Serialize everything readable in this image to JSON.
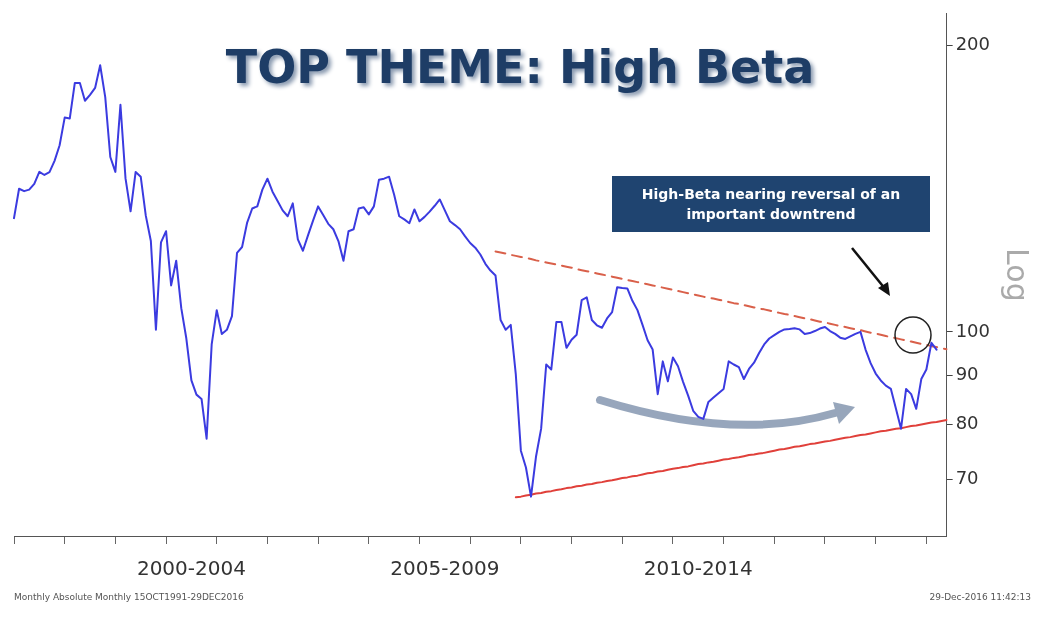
{
  "chart_data": {
    "type": "line",
    "title": "TOP THEME: High Beta",
    "ylabel": "Log",
    "annotations": [
      "High-Beta nearing reversal of an important downtrend",
      "Monthly Absolute  Monthly 15OCT1991-29DEC2016",
      "29-Dec-2016 11:42:13"
    ],
    "log": "y",
    "grid": false,
    "legend": false,
    "marker": "none",
    "categories": [
      null,
      null,
      null,
      null,
      null,
      null,
      null,
      null,
      null,
      null,
      null,
      null,
      null,
      null,
      null,
      null,
      null,
      null,
      null,
      null,
      null,
      null,
      null,
      null,
      null,
      null,
      null,
      null,
      null,
      null,
      null,
      null,
      null,
      null,
      null,
      "2000-2004",
      null,
      null,
      null,
      null,
      null,
      null,
      null,
      null,
      null,
      null,
      null,
      null,
      null,
      null,
      null,
      null,
      null,
      null,
      null,
      null,
      null,
      null,
      null,
      null,
      null,
      null,
      null,
      null,
      null,
      null,
      null,
      null,
      null,
      null,
      null,
      null,
      null,
      null,
      null,
      null,
      null,
      null,
      null,
      null,
      null,
      null,
      null,
      null,
      null,
      "2005-2009",
      null,
      null,
      null,
      null,
      null,
      null,
      null,
      null,
      null,
      null,
      null,
      null,
      null,
      null,
      null,
      null,
      null,
      null,
      null,
      null,
      null,
      null,
      null,
      null,
      null,
      null,
      null,
      null,
      null,
      null,
      null,
      null,
      null,
      null,
      null,
      null,
      null,
      null,
      null,
      null,
      null,
      null,
      null,
      null,
      null,
      null,
      null,
      null,
      null,
      "2010-2014",
      null,
      null,
      null,
      null,
      null,
      null,
      null,
      null,
      null,
      null,
      null,
      null,
      null,
      null,
      null,
      null,
      null,
      null,
      null,
      null,
      null,
      null,
      null,
      null,
      null,
      null,
      null,
      null,
      null,
      null,
      null,
      null,
      null,
      null,
      null,
      null,
      null,
      null,
      null,
      null,
      null,
      null,
      null,
      null,
      null,
      null,
      null,
      null,
      null
    ],
    "ylim": [
      61,
      216
    ],
    "yticks": [
      70,
      80,
      90,
      100,
      200
    ],
    "series": [
      {
        "color": "#3b3be0",
        "line_style": "solid",
        "values": [
          131.7,
          141.4,
          140.6,
          141.1,
          143.1,
          147.3,
          146.2,
          147.2,
          151.3,
          157.1,
          168.0,
          167.6,
          182.7,
          182.7,
          175.0,
          177.5,
          180.5,
          190.7,
          176.5,
          152.7,
          147.3,
          173.3,
          145.0,
          133.9,
          147.3,
          145.6,
          132.5,
          124.6,
          100.5,
          124.2,
          127.6,
          111.9,
          118.8,
          105.9,
          98.4,
          88.9,
          85.9,
          85.0,
          77.2,
          97.0,
          105.4,
          99.5,
          100.5,
          103.9,
          121.1,
          122.8,
          130.3,
          134.8,
          135.5,
          141.1,
          144.9,
          140.4,
          137.3,
          134.2,
          132.3,
          136.5,
          125.1,
          121.7,
          126.3,
          130.9,
          135.5,
          132.7,
          129.9,
          128.2,
          124.6,
          118.8,
          127.6,
          128.2,
          134.8,
          135.2,
          132.9,
          135.5,
          144.5,
          144.9,
          145.6,
          139.4,
          132.3,
          131.3,
          130.1,
          134.5,
          130.7,
          132.1,
          133.8,
          135.7,
          137.8,
          134.2,
          130.7,
          129.5,
          128.2,
          126.0,
          124.0,
          122.6,
          120.6,
          117.9,
          116.0,
          114.6,
          102.9,
          100.5,
          101.7,
          90.2,
          75.0,
          72.0,
          67.1,
          74.0,
          79.1,
          92.4,
          91.3,
          102.4,
          102.4,
          96.2,
          98.1,
          99.3,
          108.0,
          108.7,
          102.9,
          101.6,
          101.0,
          103.3,
          104.9,
          111.4,
          111.2,
          111.1,
          107.8,
          105.4,
          101.7,
          98.0,
          95.8,
          86.0,
          93.1,
          88.7,
          94.0,
          92.0,
          88.6,
          85.7,
          82.6,
          81.4,
          81.0,
          84.4,
          85.3,
          86.2,
          87.1,
          93.1,
          92.4,
          91.8,
          89.2,
          91.4,
          92.8,
          95.0,
          97.0,
          98.4,
          99.2,
          100.0,
          100.6,
          100.7,
          100.9,
          100.6,
          99.5,
          99.7,
          100.2,
          100.8,
          101.2,
          100.2,
          99.5,
          98.6,
          98.3,
          98.9,
          99.5,
          100.0,
          95.8,
          92.7,
          90.4,
          88.9,
          87.8,
          87.1,
          83.0,
          79.1,
          87.1,
          86.0,
          83.0,
          89.2,
          91.3,
          97.4,
          95.8,
          null,
          null
        ]
      },
      {
        "type": "line",
        "color": "#d9604a",
        "line_style": "dashed",
        "values": [
          null,
          null,
          null,
          null,
          null,
          null,
          null,
          null,
          null,
          null,
          null,
          null,
          null,
          null,
          null,
          null,
          null,
          null,
          null,
          null,
          null,
          null,
          null,
          null,
          null,
          null,
          null,
          null,
          null,
          null,
          null,
          null,
          null,
          null,
          null,
          null,
          null,
          null,
          null,
          null,
          null,
          null,
          null,
          null,
          null,
          null,
          null,
          null,
          null,
          null,
          null,
          null,
          null,
          null,
          null,
          null,
          null,
          null,
          null,
          null,
          null,
          null,
          null,
          null,
          null,
          null,
          null,
          null,
          null,
          null,
          null,
          null,
          null,
          null,
          null,
          null,
          null,
          null,
          null,
          null,
          null,
          null,
          null,
          null,
          null,
          null,
          null,
          null,
          null,
          null,
          null,
          null,
          null,
          null,
          null,
          121.5,
          121.2,
          120.9,
          120.5,
          120.2,
          119.9,
          119.6,
          119.3,
          118.9,
          118.6,
          118.3,
          118.0,
          117.7,
          117.4,
          117.1,
          116.8,
          116.4,
          116.1,
          115.8,
          115.5,
          115.2,
          114.9,
          114.6,
          114.3,
          114.0,
          113.7,
          113.4,
          113.1,
          112.8,
          112.5,
          112.2,
          111.9,
          111.6,
          111.3,
          111.0,
          110.7,
          110.4,
          110.1,
          109.8,
          109.5,
          109.2,
          108.9,
          108.6,
          108.4,
          108.1,
          107.8,
          107.5,
          107.2,
          107.0,
          106.7,
          106.4,
          106.1,
          105.8,
          105.6,
          105.3,
          105.0,
          104.7,
          104.4,
          104.2,
          103.9,
          103.6,
          103.3,
          103.1,
          102.8,
          102.5,
          102.3,
          102.0,
          101.7,
          101.4,
          101.2,
          100.9,
          100.6,
          100.4,
          100.1,
          99.8,
          99.6,
          99.3,
          99.0,
          98.7,
          98.5,
          98.2,
          97.9,
          97.7,
          97.4,
          97.1,
          96.9,
          96.6,
          96.4,
          96.1,
          95.9
        ]
      },
      {
        "type": "line",
        "color": "#e0403a",
        "line_style": "solid",
        "values": [
          null,
          null,
          null,
          null,
          null,
          null,
          null,
          null,
          null,
          null,
          null,
          null,
          null,
          null,
          null,
          null,
          null,
          null,
          null,
          null,
          null,
          null,
          null,
          null,
          null,
          null,
          null,
          null,
          null,
          null,
          null,
          null,
          null,
          null,
          null,
          null,
          null,
          null,
          null,
          null,
          null,
          null,
          null,
          null,
          null,
          null,
          null,
          null,
          null,
          null,
          null,
          null,
          null,
          null,
          null,
          null,
          null,
          null,
          null,
          null,
          null,
          null,
          null,
          null,
          null,
          null,
          null,
          null,
          null,
          null,
          null,
          null,
          null,
          null,
          null,
          null,
          null,
          null,
          null,
          null,
          null,
          null,
          null,
          null,
          null,
          null,
          null,
          null,
          null,
          null,
          null,
          null,
          null,
          null,
          null,
          null,
          null,
          null,
          null,
          67.0,
          67.1,
          67.3,
          67.4,
          67.6,
          67.7,
          67.9,
          68.0,
          68.2,
          68.3,
          68.5,
          68.6,
          68.8,
          68.9,
          69.1,
          69.2,
          69.4,
          69.5,
          69.7,
          69.8,
          70.0,
          70.2,
          70.3,
          70.5,
          70.6,
          70.8,
          71.0,
          71.1,
          71.3,
          71.4,
          71.6,
          71.8,
          71.9,
          72.1,
          72.2,
          72.4,
          72.6,
          72.7,
          72.9,
          73.0,
          73.2,
          73.4,
          73.5,
          73.7,
          73.8,
          74.0,
          74.2,
          74.3,
          74.5,
          74.6,
          74.8,
          75.0,
          75.2,
          75.3,
          75.5,
          75.7,
          75.8,
          76.0,
          76.2,
          76.3,
          76.5,
          76.7,
          76.8,
          77.0,
          77.2,
          77.4,
          77.5,
          77.7,
          77.9,
          78.0,
          78.2,
          78.4,
          78.6,
          78.7,
          78.9,
          79.1,
          79.2,
          79.4,
          79.6,
          79.7,
          79.9,
          80.1,
          80.3,
          80.4,
          80.6,
          80.8
        ]
      }
    ]
  }
}
